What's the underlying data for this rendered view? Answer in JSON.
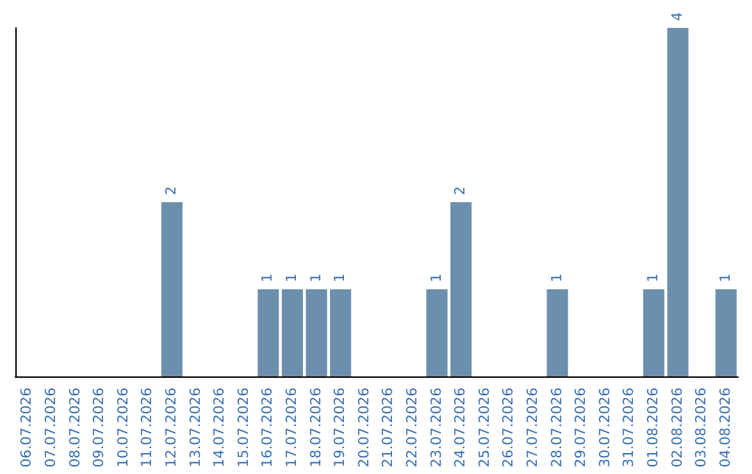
{
  "chart_data": {
    "type": "bar",
    "categories": [
      "06.07.2026",
      "07.07.2026",
      "08.07.2026",
      "09.07.2026",
      "10.07.2026",
      "11.07.2026",
      "12.07.2026",
      "13.07.2026",
      "14.07.2026",
      "15.07.2026",
      "16.07.2026",
      "17.07.2026",
      "18.07.2026",
      "19.07.2026",
      "20.07.2026",
      "21.07.2026",
      "22.07.2026",
      "23.07.2026",
      "24.07.2026",
      "25.07.2026",
      "26.07.2026",
      "27.07.2026",
      "28.07.2026",
      "29.07.2026",
      "30.07.2026",
      "31.07.2026",
      "01.08.2026",
      "02.08.2026",
      "03.08.2026",
      "04.08.2026"
    ],
    "values": [
      0,
      0,
      0,
      0,
      0,
      0,
      2,
      0,
      0,
      0,
      1,
      1,
      1,
      1,
      0,
      0,
      0,
      1,
      2,
      0,
      0,
      0,
      1,
      0,
      0,
      0,
      1,
      4,
      0,
      1
    ],
    "value_labels": [
      null,
      null,
      null,
      null,
      null,
      null,
      "2",
      null,
      null,
      null,
      "1",
      "1",
      "1",
      "1",
      null,
      null,
      null,
      "1",
      "2",
      null,
      null,
      null,
      "1",
      null,
      null,
      null,
      "1",
      "4",
      null,
      "1"
    ],
    "color": "#6d8fae",
    "tick_labels": "x"
  }
}
